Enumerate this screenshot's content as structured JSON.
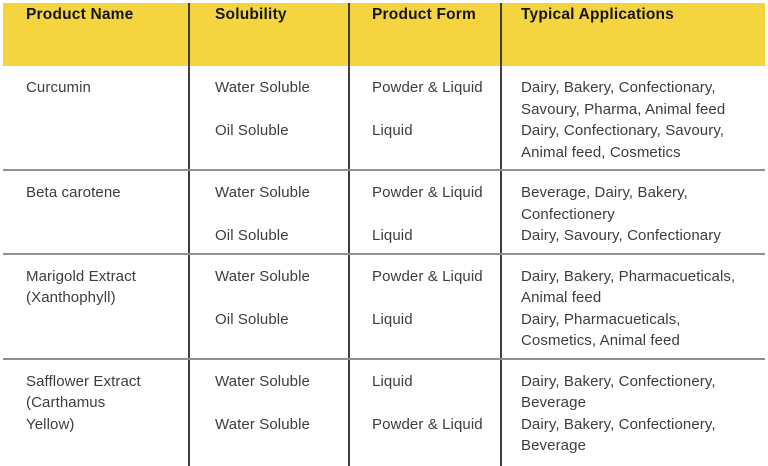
{
  "colors": {
    "header_bg": "#F4D540",
    "header_text": "#161616",
    "body_text": "#3D3D3D",
    "divider": "#3F3F3F",
    "row_separator": "#8F8F8F"
  },
  "table": {
    "header": {
      "columns": [
        "Product Name",
        "Solubility",
        "Product Form",
        "Typical Applications"
      ]
    },
    "rows": [
      {
        "name_lines": [
          "Curcumin"
        ],
        "solubility": [
          "Water Soluble",
          "Oil Soluble"
        ],
        "form": [
          "Powder & Liquid",
          "Liquid"
        ],
        "applications": [
          [
            "Dairy, Bakery, Confectionary,",
            "Savoury, Pharma, Animal feed"
          ],
          [
            "Dairy, Confectionary, Savoury,",
            "Animal feed, Cosmetics"
          ]
        ]
      },
      {
        "name_lines": [
          "Beta carotene"
        ],
        "solubility": [
          "Water Soluble",
          "Oil Soluble"
        ],
        "form": [
          "Powder & Liquid",
          "Liquid"
        ],
        "applications": [
          [
            "Beverage, Dairy, Bakery,",
            "Confectionery"
          ],
          [
            "Dairy, Savoury, Confectionary"
          ]
        ]
      },
      {
        "name_lines": [
          "Marigold Extract",
          "(Xanthophyll)"
        ],
        "solubility": [
          "Water Soluble",
          "Oil Soluble"
        ],
        "form": [
          "Powder & Liquid",
          "Liquid"
        ],
        "applications": [
          [
            "Dairy, Bakery, Pharmacueticals,",
            "Animal feed"
          ],
          [
            "Dairy, Pharmacueticals,",
            "Cosmetics, Animal feed"
          ]
        ]
      },
      {
        "name_lines": [
          "Safflower Extract",
          "(Carthamus",
          "Yellow)"
        ],
        "solubility": [
          "Water Soluble",
          "Water Soluble"
        ],
        "form": [
          "Liquid",
          "Powder & Liquid"
        ],
        "applications": [
          [
            "Dairy, Bakery, Confectionery,",
            "Beverage"
          ],
          [
            "Dairy, Bakery, Confectionery,",
            "Beverage"
          ]
        ]
      }
    ]
  }
}
